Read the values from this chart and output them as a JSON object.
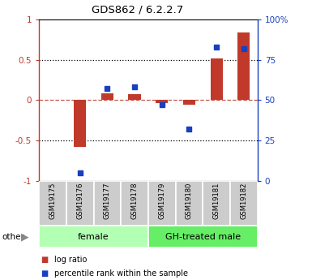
{
  "title": "GDS862 / 6.2.2.7",
  "samples": [
    "GSM19175",
    "GSM19176",
    "GSM19177",
    "GSM19178",
    "GSM19179",
    "GSM19180",
    "GSM19181",
    "GSM19182"
  ],
  "log_ratio": [
    0.0,
    -0.58,
    0.08,
    0.07,
    -0.04,
    -0.06,
    0.52,
    0.84
  ],
  "percentile_rank": [
    null,
    5,
    57,
    58,
    47,
    32,
    83,
    82
  ],
  "groups": [
    {
      "label": "female",
      "indices": [
        0,
        1,
        2,
        3
      ],
      "color": "#b3ffb3"
    },
    {
      "label": "GH-treated male",
      "indices": [
        4,
        5,
        6,
        7
      ],
      "color": "#66ee66"
    }
  ],
  "bar_color": "#c0392b",
  "dot_color": "#1a3fbf",
  "ylim_left": [
    -1.0,
    1.0
  ],
  "ylim_right": [
    0,
    100
  ],
  "yticks_left": [
    -1.0,
    -0.5,
    0.0,
    0.5,
    1.0
  ],
  "ytick_labels_left": [
    "-1",
    "-0.5",
    "0",
    "0.5",
    "1"
  ],
  "yticks_right": [
    0,
    25,
    50,
    75,
    100
  ],
  "ytick_labels_right": [
    "0",
    "25",
    "50",
    "75",
    "100%"
  ],
  "dotted_lines_black": [
    -0.5,
    0.5
  ],
  "dashed_line_red": 0.0,
  "bg_color": "#ffffff",
  "other_label": "other",
  "legend_items": [
    {
      "label": "log ratio",
      "color": "#c0392b"
    },
    {
      "label": "percentile rank within the sample",
      "color": "#1a3fbf"
    }
  ]
}
